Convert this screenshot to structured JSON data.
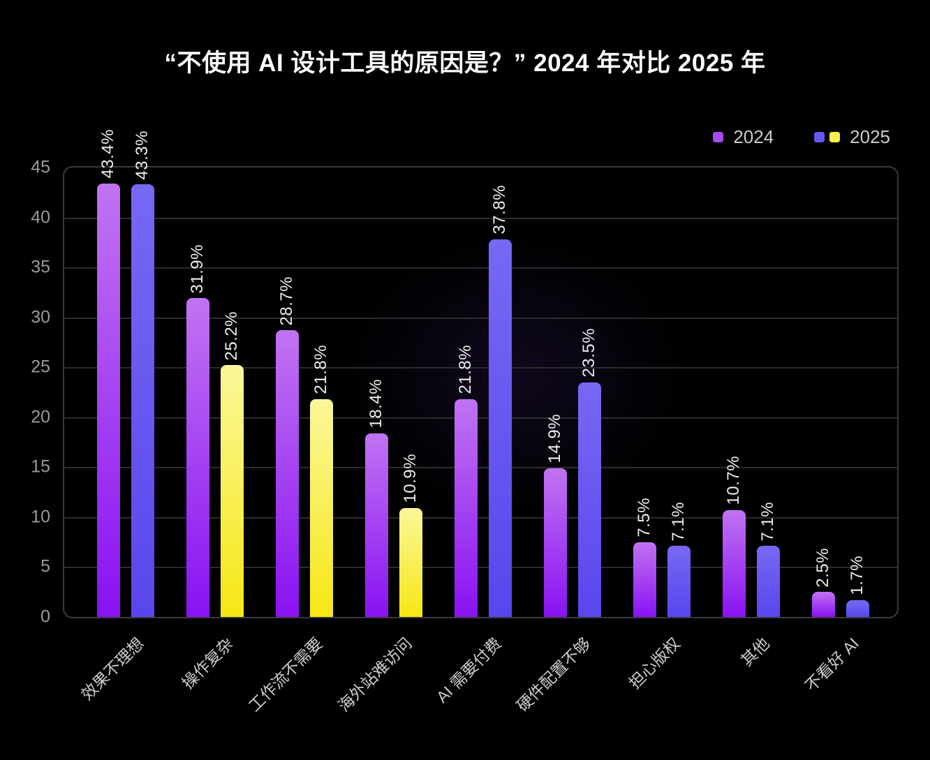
{
  "page": {
    "background": "#000000"
  },
  "chart_data": {
    "type": "bar",
    "title": "“不使用 AI 设计工具的原因是？” 2024 年对比 2025 年",
    "categories": [
      "效果不理想",
      "操作复杂",
      "工作流不需要",
      "海外站难访问",
      "AI 需要付费",
      "硬件配置不够",
      "担心版权",
      "其他",
      "不看好 AI"
    ],
    "series": [
      {
        "name": "2024",
        "values": [
          43.4,
          31.9,
          28.7,
          18.4,
          21.8,
          14.9,
          7.5,
          10.7,
          2.5
        ],
        "labels": [
          "43.4%",
          "31.9%",
          "28.7%",
          "18.4%",
          "21.8%",
          "14.9%",
          "7.5%",
          "10.7%",
          "2.5%"
        ],
        "style": "purple"
      },
      {
        "name": "2025",
        "values": [
          43.3,
          25.2,
          21.8,
          10.9,
          37.8,
          23.5,
          7.1,
          7.1,
          1.7
        ],
        "labels": [
          "43.3%",
          "25.2%",
          "21.8%",
          "10.9%",
          "37.8%",
          "23.5%",
          "7.1%",
          "7.1%",
          "1.7%"
        ],
        "styles": [
          "blue",
          "yellow",
          "yellow",
          "yellow",
          "blue",
          "blue",
          "blue",
          "blue",
          "blue"
        ]
      }
    ],
    "ylim": [
      0,
      45
    ],
    "yticks": [
      0,
      5,
      10,
      15,
      20,
      25,
      30,
      35,
      40,
      45
    ],
    "grid": true,
    "legend_position": "top-right",
    "legend": [
      {
        "label": "2024",
        "swatches": [
          "#a44cf0"
        ]
      },
      {
        "label": "2025",
        "swatches": [
          "#6557f0",
          "#f8ef4f"
        ]
      }
    ],
    "colors": {
      "purple": [
        "#c173f2",
        "#8912f2"
      ],
      "blue": [
        "#7768f3",
        "#5946ee"
      ],
      "yellow": [
        "#fbf79a",
        "#f6e714"
      ]
    },
    "value_suffix": "%",
    "text_colors": {
      "title": "#ffffff",
      "value_label": "#ededed",
      "axis_label": "#9a9a9a",
      "category_label": "#cccccc",
      "legend_label": "#cbcbcb"
    }
  }
}
